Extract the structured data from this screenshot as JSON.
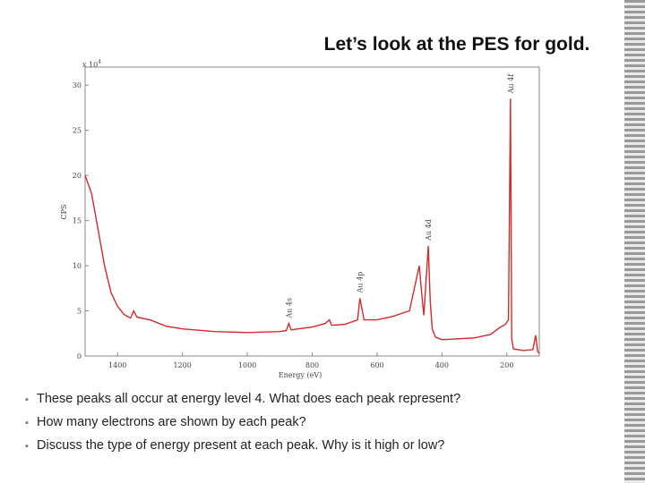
{
  "slide": {
    "title": "Let’s look at the PES for gold.",
    "bullets": [
      "These peaks all occur at energy level 4.  What does each peak represent?",
      "How many electrons are shown by each peak?",
      "Discuss the type of energy present at each peak.  Why is it high or low?"
    ]
  },
  "chart_data": {
    "type": "line",
    "xlabel": "Energy (eV)",
    "ylabel": "CPS",
    "y_multiplier": {
      "base": "x 10",
      "exponent": "4"
    },
    "x": [
      1500,
      1480,
      1460,
      1440,
      1420,
      1400,
      1380,
      1360,
      1350,
      1340,
      1300,
      1250,
      1200,
      1100,
      1000,
      900,
      880,
      872,
      865,
      800,
      760,
      747,
      740,
      700,
      660,
      653,
      640,
      600,
      550,
      500,
      470,
      460,
      456,
      442,
      436,
      430,
      420,
      400,
      300,
      250,
      220,
      205,
      195,
      189,
      185,
      180,
      150,
      120,
      111,
      105,
      100
    ],
    "values": [
      20,
      18,
      14,
      10,
      7,
      5.5,
      4.6,
      4.2,
      5,
      4.3,
      4,
      3.3,
      3,
      2.7,
      2.6,
      2.7,
      2.8,
      3.6,
      2.9,
      3.2,
      3.6,
      4.0,
      3.4,
      3.5,
      4,
      6.4,
      4.0,
      4.0,
      4.4,
      5.0,
      10.0,
      6,
      4.5,
      12.2,
      6,
      3,
      2.1,
      1.8,
      2.0,
      2.4,
      3.2,
      3.5,
      4,
      28.5,
      2,
      0.8,
      0.6,
      0.7,
      2.3,
      0.5,
      0.3
    ],
    "color": "#d42a2a",
    "xlim": [
      1500,
      100
    ],
    "ylim": [
      0,
      32
    ],
    "xticks": [
      1400,
      1200,
      1000,
      800,
      600,
      400,
      200
    ],
    "yticks": [
      0,
      5,
      10,
      15,
      20,
      25,
      30
    ],
    "annotations": [
      {
        "text": "Au 4s",
        "x": 872,
        "y": 3.6
      },
      {
        "text": "Au 4p",
        "x": 653,
        "y": 6.4
      },
      {
        "text": "Au 4d",
        "x": 442,
        "y": 12.2
      },
      {
        "text": "Au 4f",
        "x": 189,
        "y": 28.5
      }
    ]
  }
}
